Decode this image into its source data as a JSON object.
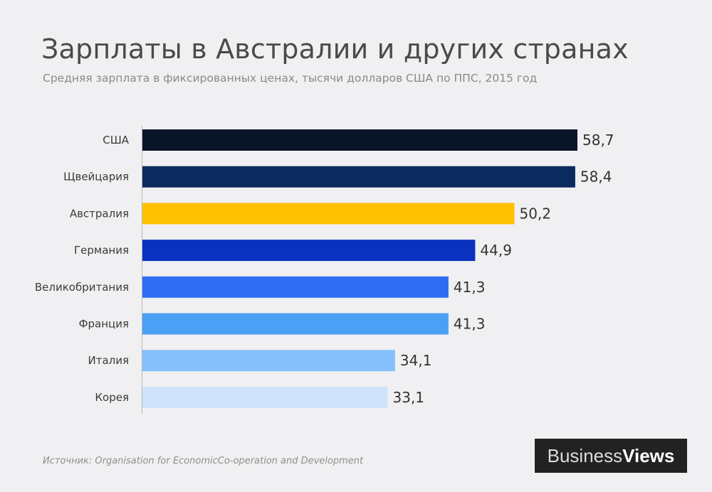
{
  "header": {
    "title": "Зарплаты в Австралии и других странах",
    "subtitle": "Средняя зарплата в фиксированных ценах, тысячи долларов США по ППС, 2015 год"
  },
  "chart_data": {
    "type": "bar",
    "orientation": "horizontal",
    "title": "Зарплаты в Австралии и других странах",
    "subtitle": "Средняя зарплата в фиксированных ценах, тысячи долларов США по ППС, 2015 год",
    "categories": [
      "США",
      "Щвейцария",
      "Австралия",
      "Германия",
      "Великобритания",
      "Франция",
      "Италия",
      "Корея"
    ],
    "values": [
      58.7,
      58.4,
      50.2,
      44.9,
      41.3,
      41.3,
      34.1,
      33.1
    ],
    "value_labels": [
      "58,7",
      "58,4",
      "50,2",
      "44,9",
      "41,3",
      "41,3",
      "34,1",
      "33,1"
    ],
    "colors": [
      "#0a1428",
      "#0b2a5e",
      "#ffc000",
      "#0a32c0",
      "#2f6cf2",
      "#4aa0f5",
      "#86c0fb",
      "#cfe3fb"
    ],
    "xlim": [
      0,
      58.7
    ],
    "grid": false,
    "legend": "none"
  },
  "footer": {
    "source": "Источник: Organisation for EconomicCo-operation and Development",
    "logo_part1": "Business",
    "logo_part2": "Views"
  }
}
